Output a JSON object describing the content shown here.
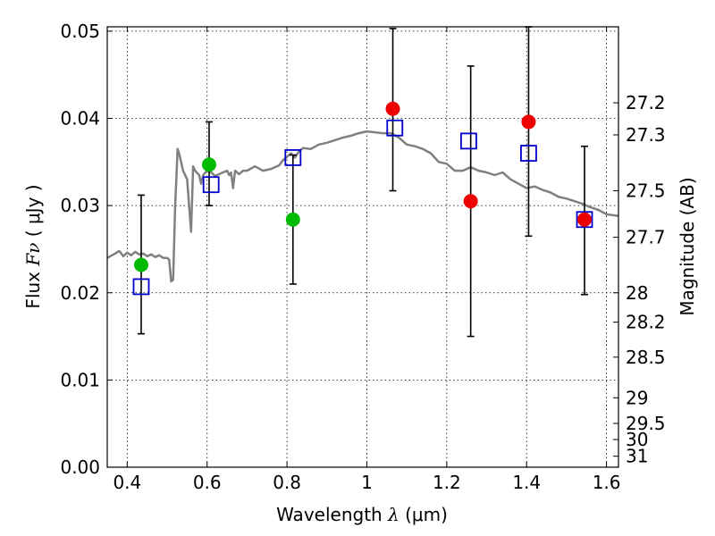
{
  "chart_data": {
    "type": "scatter",
    "title": "",
    "xlabel": {
      "text": "Wavelength",
      "symbol": "λ",
      "unit": "(μm)"
    },
    "ylabel": {
      "text": "Flux",
      "symbol": "Fν",
      "unit": "( μJy )"
    },
    "y2label": "Magnitude (AB)",
    "xlim": [
      0.35,
      1.63
    ],
    "ylim": [
      0.0,
      0.0505
    ],
    "grid": true,
    "xticks": [
      {
        "value": 0.4,
        "label": "0.4"
      },
      {
        "value": 0.6,
        "label": "0.6"
      },
      {
        "value": 0.8,
        "label": "0.8"
      },
      {
        "value": 1.0,
        "label": "1"
      },
      {
        "value": 1.2,
        "label": "1.2"
      },
      {
        "value": 1.4,
        "label": "1.4"
      },
      {
        "value": 1.6,
        "label": "1.6"
      }
    ],
    "yticks": [
      {
        "value": 0.0,
        "label": "0.00"
      },
      {
        "value": 0.01,
        "label": "0.01"
      },
      {
        "value": 0.02,
        "label": "0.02"
      },
      {
        "value": 0.03,
        "label": "0.03"
      },
      {
        "value": 0.04,
        "label": "0.04"
      },
      {
        "value": 0.05,
        "label": "0.05"
      }
    ],
    "y2ticks": [
      {
        "value": 27.2,
        "label": "27.2"
      },
      {
        "value": 27.3,
        "label": "27.3"
      },
      {
        "value": 27.5,
        "label": "27.5"
      },
      {
        "value": 27.7,
        "label": "27.7"
      },
      {
        "value": 28.0,
        "label": "28"
      },
      {
        "value": 28.2,
        "label": "28.2"
      },
      {
        "value": 28.5,
        "label": "28.5"
      },
      {
        "value": 29.0,
        "label": "29"
      },
      {
        "value": 29.5,
        "label": "29.5"
      },
      {
        "value": 30.0,
        "label": "30"
      },
      {
        "value": 31.0,
        "label": "31"
      }
    ],
    "colors": {
      "spectrum": "#808080",
      "model": "#0000cc",
      "green_obs": "#00bb00",
      "red_obs": "#ee0000",
      "errorbar": "#000000"
    },
    "series": [
      {
        "kind": "spectrum",
        "x": [
          0.35,
          0.37,
          0.38,
          0.39,
          0.4,
          0.41,
          0.42,
          0.43,
          0.44,
          0.45,
          0.46,
          0.47,
          0.48,
          0.49,
          0.5,
          0.505,
          0.51,
          0.515,
          0.52,
          0.523,
          0.526,
          0.53,
          0.54,
          0.55,
          0.555,
          0.56,
          0.565,
          0.57,
          0.58,
          0.585,
          0.59,
          0.6,
          0.61,
          0.62,
          0.63,
          0.64,
          0.65,
          0.655,
          0.66,
          0.665,
          0.67,
          0.68,
          0.69,
          0.7,
          0.72,
          0.74,
          0.76,
          0.78,
          0.79,
          0.8,
          0.81,
          0.82,
          0.83,
          0.84,
          0.86,
          0.88,
          0.9,
          0.92,
          0.94,
          0.96,
          0.98,
          1.0,
          1.02,
          1.04,
          1.06,
          1.08,
          1.1,
          1.12,
          1.14,
          1.16,
          1.18,
          1.2,
          1.22,
          1.24,
          1.26,
          1.28,
          1.3,
          1.32,
          1.34,
          1.36,
          1.38,
          1.4,
          1.42,
          1.44,
          1.46,
          1.48,
          1.5,
          1.52,
          1.54,
          1.56,
          1.58,
          1.6,
          1.63
        ],
        "y": [
          0.024,
          0.0245,
          0.0248,
          0.0242,
          0.0246,
          0.0243,
          0.0247,
          0.0244,
          0.0245,
          0.0242,
          0.0244,
          0.0241,
          0.0243,
          0.024,
          0.024,
          0.0238,
          0.0213,
          0.0215,
          0.03,
          0.033,
          0.0365,
          0.036,
          0.034,
          0.033,
          0.03,
          0.027,
          0.0345,
          0.034,
          0.0335,
          0.0325,
          0.0335,
          0.034,
          0.0338,
          0.0334,
          0.0336,
          0.0338,
          0.034,
          0.0335,
          0.0338,
          0.032,
          0.034,
          0.0336,
          0.034,
          0.034,
          0.0345,
          0.034,
          0.0342,
          0.0346,
          0.0352,
          0.0356,
          0.036,
          0.0355,
          0.0362,
          0.0366,
          0.0365,
          0.037,
          0.0372,
          0.0375,
          0.0378,
          0.038,
          0.0383,
          0.0385,
          0.0384,
          0.0383,
          0.0383,
          0.0378,
          0.037,
          0.0368,
          0.0365,
          0.036,
          0.035,
          0.0348,
          0.034,
          0.034,
          0.0344,
          0.034,
          0.0338,
          0.0335,
          0.0338,
          0.033,
          0.0325,
          0.032,
          0.0322,
          0.0318,
          0.0315,
          0.031,
          0.0308,
          0.0305,
          0.0302,
          0.0298,
          0.0295,
          0.029,
          0.0288
        ]
      },
      {
        "kind": "model",
        "x": [
          0.435,
          0.61,
          0.815,
          1.07,
          1.255,
          1.405,
          1.545
        ],
        "y": [
          0.0207,
          0.0324,
          0.0355,
          0.0389,
          0.0374,
          0.036,
          0.0284
        ]
      },
      {
        "kind": "observed",
        "x": [
          0.435,
          0.605,
          0.815,
          1.065,
          1.26,
          1.405,
          1.545
        ],
        "y": [
          0.0232,
          0.0347,
          0.0284,
          0.0411,
          0.0305,
          0.0396,
          0.0284
        ],
        "color": [
          "green",
          "green",
          "green",
          "red",
          "red",
          "red",
          "red"
        ],
        "err_low": [
          0.0153,
          0.03,
          0.021,
          0.0317,
          0.015,
          0.0265,
          0.0198
        ],
        "err_high": [
          0.0312,
          0.0396,
          0.0358,
          0.0503,
          0.046,
          0.0505,
          0.0368
        ]
      }
    ]
  }
}
